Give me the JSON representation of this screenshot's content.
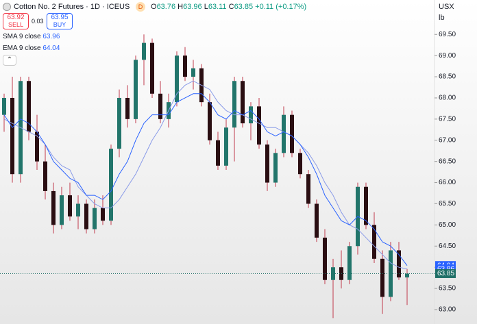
{
  "header": {
    "symbol": "Cotton No. 2 Futures · 1D · ICEUS",
    "badge": "D",
    "o": "O",
    "h": "H",
    "l": "L",
    "c": "C",
    "change": "+0.11 (+0.17%)",
    "currency": "USX",
    "unit": "lb"
  },
  "trade": {
    "sell_price": "63.92",
    "sell": "SELL",
    "spread": "0.03",
    "buy_price": "63.95",
    "buy": "BUY"
  },
  "chart_data": {
    "type": "candlestick",
    "ylim": [
      62.66,
      69.86
    ],
    "yticks": [
      {
        "value": 63,
        "label": "63.00"
      },
      {
        "value": 63.5,
        "label": "63.50"
      },
      {
        "value": 64,
        "label": "64.00"
      },
      {
        "value": 64.5,
        "label": "64.50"
      },
      {
        "value": 65,
        "label": "65.00"
      },
      {
        "value": 65.5,
        "label": "65.50"
      },
      {
        "value": 66,
        "label": "66.00"
      },
      {
        "value": 66.5,
        "label": "66.50"
      },
      {
        "value": 67,
        "label": "67.00"
      },
      {
        "value": 67.5,
        "label": "67.50"
      },
      {
        "value": 68,
        "label": "68.00"
      },
      {
        "value": 68.5,
        "label": "68.50"
      },
      {
        "value": 69,
        "label": "69.00"
      },
      {
        "value": 69.5,
        "label": "69.50"
      }
    ],
    "up_color": "#22756b",
    "down_color": "#2a0e12",
    "wick_color": "#c0394b",
    "candles": {
      "open": [
        67.6,
        68.0,
        66.2,
        68.4,
        67.2,
        66.5,
        65.8,
        65.0,
        65.7,
        65.2,
        65.5,
        64.9,
        65.4,
        65.1,
        66.8,
        68.0,
        67.5,
        68.9,
        69.3,
        68.1,
        67.5,
        67.9,
        69.0,
        68.5,
        68.7,
        67.9,
        67.0,
        66.4,
        67.3,
        68.4,
        67.4,
        67.8,
        66.9,
        66.0,
        66.7,
        67.6,
        66.7,
        66.2,
        65.5,
        64.7,
        63.7,
        64.0,
        63.7,
        64.5,
        65.9,
        65.0,
        64.2,
        63.3,
        64.4,
        63.76
      ],
      "high": [
        68.1,
        68.5,
        68.5,
        68.5,
        67.6,
        66.9,
        66.0,
        65.9,
        66.0,
        65.7,
        65.6,
        65.6,
        65.7,
        66.9,
        68.2,
        68.3,
        69.0,
        69.5,
        69.4,
        68.4,
        68.1,
        69.1,
        69.2,
        68.9,
        68.8,
        68.1,
        67.2,
        67.5,
        68.5,
        68.5,
        67.9,
        68.0,
        67.0,
        66.8,
        67.8,
        67.7,
        66.8,
        66.3,
        65.6,
        64.9,
        64.2,
        64.4,
        64.6,
        66.0,
        66.0,
        65.3,
        64.4,
        64.6,
        64.6,
        63.96
      ],
      "low": [
        67.2,
        66.0,
        66.0,
        67.0,
        66.3,
        65.6,
        64.8,
        64.9,
        65.1,
        64.9,
        64.8,
        64.8,
        65.0,
        65.0,
        66.6,
        67.3,
        67.4,
        68.3,
        68.0,
        67.4,
        67.3,
        67.8,
        68.4,
        68.2,
        67.8,
        66.9,
        66.3,
        66.3,
        66.5,
        67.3,
        67.0,
        66.8,
        65.8,
        65.9,
        66.6,
        66.6,
        66.1,
        65.4,
        64.6,
        63.6,
        62.8,
        63.5,
        63.6,
        64.3,
        64.9,
        64.1,
        62.9,
        63.2,
        63.7,
        63.11
      ],
      "close": [
        68.0,
        66.2,
        68.4,
        67.2,
        66.5,
        65.8,
        65.0,
        65.7,
        65.2,
        65.5,
        64.9,
        65.4,
        65.1,
        66.8,
        68.0,
        67.5,
        68.9,
        69.3,
        68.1,
        67.5,
        67.9,
        69.0,
        68.5,
        68.7,
        67.9,
        67.0,
        66.4,
        67.3,
        68.4,
        67.4,
        67.8,
        66.9,
        66.0,
        66.7,
        67.6,
        66.7,
        66.2,
        65.5,
        64.7,
        63.7,
        64.0,
        63.7,
        64.5,
        65.9,
        65.0,
        64.2,
        63.3,
        64.4,
        63.76,
        63.85
      ]
    },
    "series": [
      {
        "name": "SMA 9 close",
        "color": "#8a9be8",
        "values": [
          67.5,
          67.4,
          67.3,
          67.2,
          67.1,
          66.9,
          66.6,
          66.4,
          66.3,
          65.9,
          65.7,
          65.5,
          65.4,
          65.4,
          65.6,
          65.9,
          66.2,
          66.6,
          67.0,
          67.3,
          67.7,
          68.1,
          68.3,
          68.4,
          68.3,
          68.2,
          67.9,
          67.7,
          67.6,
          67.6,
          67.5,
          67.4,
          67.3,
          67.3,
          67.2,
          67.1,
          66.9,
          66.7,
          66.4,
          66.0,
          65.7,
          65.3,
          65.0,
          64.9,
          64.7,
          64.5,
          64.3,
          64.1,
          64.0,
          63.96
        ]
      },
      {
        "name": "EMA 9 close",
        "color": "#2962ff",
        "values": [
          67.6,
          67.3,
          67.5,
          67.4,
          67.2,
          66.9,
          66.5,
          66.3,
          66.1,
          66.0,
          65.7,
          65.7,
          65.6,
          65.8,
          66.2,
          66.5,
          67.0,
          67.4,
          67.6,
          67.6,
          67.6,
          67.9,
          68.0,
          68.1,
          68.1,
          67.9,
          67.6,
          67.5,
          67.7,
          67.6,
          67.7,
          67.5,
          67.2,
          67.1,
          67.2,
          67.1,
          66.9,
          66.6,
          66.2,
          65.7,
          65.4,
          65.1,
          65.0,
          65.2,
          65.1,
          64.9,
          64.6,
          64.5,
          64.3,
          64.04
        ]
      }
    ],
    "last_color": "#1f6f67"
  }
}
